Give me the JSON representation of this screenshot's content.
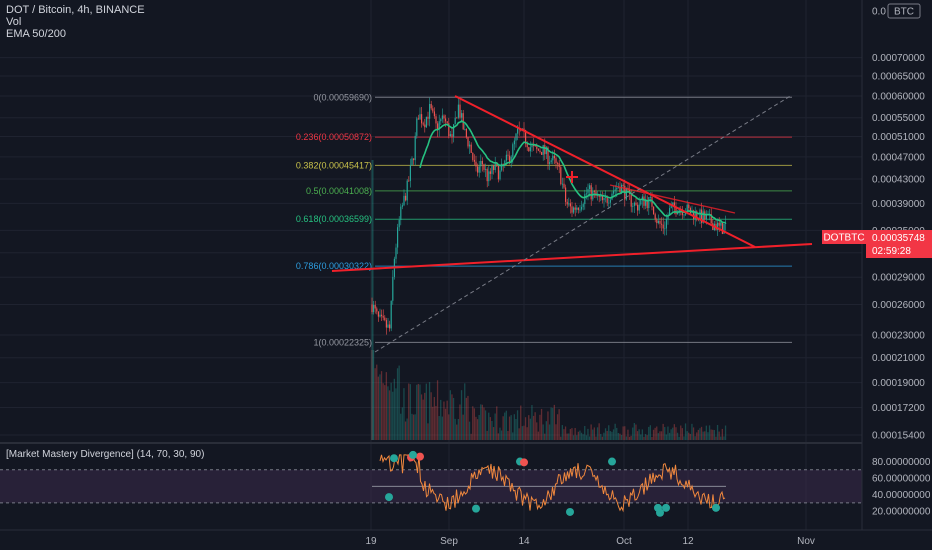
{
  "legend": {
    "pair_line": "DOT / Bitcoin, 4h, BINANCE",
    "vol_label": "Vol",
    "ema_label": "EMA 50/200"
  },
  "currency_badge": "BTC",
  "currency_top_tick": "0.0",
  "price_tag": {
    "symbol": "DOTBTC",
    "price": "0.00035748",
    "countdown": "02:59:28",
    "color": "#f23645"
  },
  "indicator": {
    "title": "[Market Mastery Divergence] (14, 70, 30, 90)",
    "ticks": [
      "80.00000000",
      "60.00000000",
      "40.00000000",
      "20.00000000"
    ]
  },
  "colors": {
    "background": "#131722",
    "up": "#26a69a",
    "down": "#ef5350",
    "trendline": "#f0202a",
    "ema": "#26c281",
    "osc": "#f0883e",
    "band": "#3a2a4a"
  },
  "chart_data": {
    "type": "candlestick",
    "title": "DOT / Bitcoin, 4h, BINANCE",
    "y_axis_ticks": [
      "0.00070000",
      "0.00065000",
      "0.00060000",
      "0.00055000",
      "0.00051000",
      "0.00047000",
      "0.00043000",
      "0.00039000",
      "0.00035000",
      "0.00032000",
      "0.00029000",
      "0.00026000",
      "0.00023000",
      "0.00021000",
      "0.00019000",
      "0.00017200",
      "0.00015400"
    ],
    "x_axis_ticks": [
      "19",
      "Sep",
      "14",
      "Oct",
      "12",
      "Nov"
    ],
    "fib_levels": [
      {
        "label": "0(0.00059690)",
        "value": 0.0005969,
        "color": "#9598a1"
      },
      {
        "label": "0.236(0.00050872)",
        "value": 0.00050872,
        "color": "#f23645"
      },
      {
        "label": "0.382(0.00045417)",
        "value": 0.00045417,
        "color": "#c9c24b"
      },
      {
        "label": "0.5(0.00041008)",
        "value": 0.00041008,
        "color": "#4caf50"
      },
      {
        "label": "0.618(0.00036599)",
        "value": 0.00036599,
        "color": "#26c281"
      },
      {
        "label": "0.786(0.00030322)",
        "value": 0.00030322,
        "color": "#2d9ee0"
      },
      {
        "label": "1(0.00022325)",
        "value": 0.00022325,
        "color": "#9598a1"
      }
    ],
    "indicator_ticks": [
      80,
      60,
      40,
      20
    ],
    "indicator_band": [
      30,
      70
    ]
  }
}
